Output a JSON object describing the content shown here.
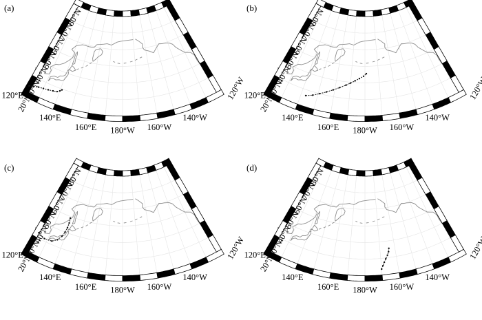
{
  "panels": [
    {
      "id": "a",
      "label": "(a)",
      "ox": 0,
      "oy": 0,
      "track": [
        [
          121.5,
          23.5
        ],
        [
          124,
          24.5
        ],
        [
          127,
          25.5
        ],
        [
          130,
          26.0
        ],
        [
          133,
          26.5
        ],
        [
          136,
          27.0
        ],
        [
          138.5,
          27.5
        ],
        [
          140,
          28.5
        ],
        [
          141,
          29.5
        ]
      ]
    },
    {
      "id": "b",
      "label": "(b)",
      "ox": 352,
      "oy": 0,
      "track": [
        [
          143,
          26.5
        ],
        [
          147,
          28.0
        ],
        [
          151,
          30.0
        ],
        [
          155,
          32.0
        ],
        [
          159,
          34.0
        ],
        [
          163,
          36.0
        ],
        [
          167,
          38.0
        ],
        [
          170,
          39.5
        ],
        [
          173,
          41.0
        ],
        [
          176,
          42.5
        ],
        [
          179,
          44.0
        ],
        [
          181,
          45.5
        ]
      ]
    },
    {
      "id": "c",
      "label": "(c)",
      "ox": 0,
      "oy": 232,
      "track": [
        [
          123.0,
          33.0
        ],
        [
          128.0,
          31.5
        ],
        [
          133.0,
          32.0
        ],
        [
          136.0,
          34.0
        ],
        [
          138.0,
          37.0
        ],
        [
          139.0,
          40.0
        ],
        [
          139.5,
          43.0
        ],
        [
          139.5,
          46.0
        ],
        [
          139.0,
          49.0
        ]
      ]
    },
    {
      "id": "d",
      "label": "(d)",
      "ox": 352,
      "oy": 232,
      "track": [
        [
          190.0,
          23.5
        ],
        [
          191.0,
          25.5
        ],
        [
          192.0,
          27.5
        ],
        [
          193.2,
          29.5
        ],
        [
          194.5,
          31.5
        ],
        [
          195.5,
          33.5
        ],
        [
          196.0,
          35.5
        ]
      ]
    }
  ],
  "lat_labels": [
    "20°N",
    "30°N",
    "40°N",
    "50°N",
    "60°N",
    "70°N",
    "80°N"
  ],
  "lat_values": [
    20,
    30,
    40,
    50,
    60,
    70,
    80
  ],
  "lon_labels": [
    "120°E",
    "140°E",
    "160°E",
    "180°W",
    "160°W",
    "140°W",
    "120°W"
  ],
  "lon_values": [
    120,
    140,
    160,
    180,
    200,
    220,
    240
  ]
}
